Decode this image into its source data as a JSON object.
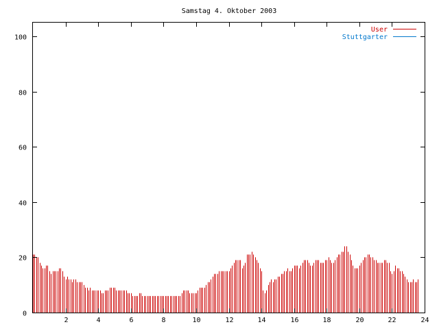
{
  "chart_data": {
    "type": "bar",
    "title": "Samstag 4. Oktober 2003",
    "xlabel": "",
    "ylabel": "",
    "xlim": [
      0,
      24
    ],
    "ylim": [
      0,
      105
    ],
    "x_ticks": [
      "2",
      "4",
      "6",
      "8",
      "10",
      "12",
      "14",
      "16",
      "18",
      "20",
      "22",
      "24"
    ],
    "y_ticks": [
      "0",
      "20",
      "40",
      "60",
      "80",
      "100"
    ],
    "grid": false,
    "legend_position": "top-right",
    "series": [
      {
        "name": "User",
        "color": "#cc0000",
        "step_hours": 0.1,
        "values": [
          21,
          21,
          20,
          20,
          18,
          17,
          16,
          16,
          17,
          17,
          15,
          14,
          15,
          15,
          15,
          15,
          16,
          16,
          15,
          13,
          12,
          13,
          12,
          12,
          11,
          12,
          12,
          11,
          11,
          11,
          11,
          10,
          9,
          9,
          8,
          9,
          8,
          8,
          8,
          8,
          8,
          8,
          7,
          7,
          8,
          8,
          8,
          9,
          9,
          9,
          9,
          8,
          8,
          8,
          8,
          8,
          8,
          8,
          7,
          7,
          7,
          6,
          6,
          6,
          6,
          7,
          7,
          6,
          6,
          6,
          6,
          6,
          6,
          6,
          6,
          6,
          6,
          6,
          6,
          6,
          6,
          6,
          6,
          6,
          6,
          6,
          6,
          6,
          6,
          6,
          6,
          7,
          8,
          8,
          8,
          8,
          7,
          7,
          7,
          7,
          7,
          8,
          9,
          9,
          9,
          9,
          10,
          11,
          11,
          12,
          13,
          14,
          14,
          14,
          15,
          15,
          15,
          15,
          15,
          15,
          15,
          16,
          17,
          18,
          19,
          19,
          19,
          19,
          16,
          17,
          18,
          21,
          21,
          21,
          22,
          21,
          20,
          19,
          18,
          16,
          15,
          8,
          7,
          8,
          10,
          11,
          12,
          11,
          12,
          12,
          13,
          13,
          14,
          14,
          15,
          15,
          16,
          15,
          15,
          16,
          17,
          17,
          17,
          16,
          17,
          18,
          19,
          19,
          19,
          18,
          17,
          17,
          18,
          19,
          19,
          19,
          18,
          18,
          18,
          19,
          19,
          20,
          19,
          18,
          18,
          19,
          20,
          21,
          21,
          22,
          22,
          24,
          24,
          22,
          21,
          19,
          17,
          16,
          16,
          16,
          17,
          18,
          19,
          20,
          20,
          21,
          21,
          20,
          20,
          19,
          19,
          18,
          18,
          18,
          18,
          19,
          19,
          18,
          18,
          15,
          14,
          15,
          17,
          16,
          16,
          15,
          15,
          14,
          13,
          12,
          11,
          11,
          11,
          12,
          11,
          11,
          12
        ]
      },
      {
        "name": "Stuttgarter",
        "color": "#0077cc",
        "values": []
      }
    ]
  }
}
